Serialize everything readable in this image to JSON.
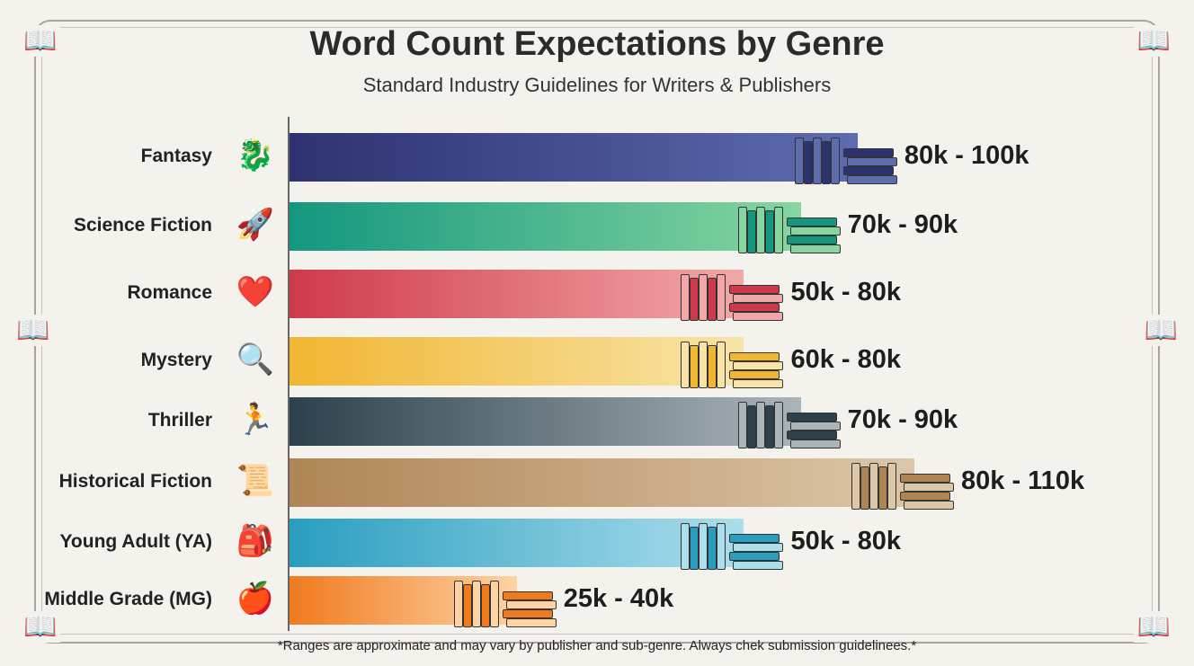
{
  "title": "Word Count Expectations by Genre",
  "subtitle": "Standard Industry Guidelines for Writers & Publishers",
  "footnote": "*Ranges are approximate and may vary by publisher and sub-genre. Always chek submission guidelinees.*",
  "chart_data": {
    "type": "bar",
    "orientation": "horizontal",
    "title": "Word Count Expectations by Genre",
    "subtitle": "Standard Industry Guidelines for Writers & Publishers",
    "categories": [
      "Fantasy",
      "Science Fiction",
      "Romance",
      "Mystery",
      "Thriller",
      "Historical Fiction",
      "Young Adult (YA)",
      "Middle Grade (MG)"
    ],
    "range_labels": [
      "80k - 100k",
      "70k - 90k",
      "50k - 80k",
      "60k - 80k",
      "70k - 90k",
      "80k - 110k",
      "50k - 80k",
      "25k - 40k"
    ],
    "min_values": [
      80000,
      70000,
      50000,
      60000,
      70000,
      80000,
      50000,
      25000
    ],
    "max_values": [
      100000,
      90000,
      80000,
      80000,
      90000,
      110000,
      80000,
      40000
    ],
    "icons": [
      "dragon-icon",
      "rocket-icon",
      "heart-icon",
      "magnifier-icon",
      "runner-icon",
      "scroll-icon",
      "backpack-icon",
      "apple-icon"
    ],
    "colors": [
      [
        "#2e3270",
        "#5d6cae"
      ],
      [
        "#14977f",
        "#86d6a0"
      ],
      [
        "#cf3a4a",
        "#f2a8a8"
      ],
      [
        "#f1b632",
        "#f8e4a8"
      ],
      [
        "#2d414c",
        "#aab5b9"
      ],
      [
        "#b08555",
        "#dcc7a8"
      ],
      [
        "#2a9ec0",
        "#acdeec"
      ],
      [
        "#f07a1e",
        "#fcd3a4"
      ]
    ],
    "grid": false,
    "legend": "none"
  }
}
